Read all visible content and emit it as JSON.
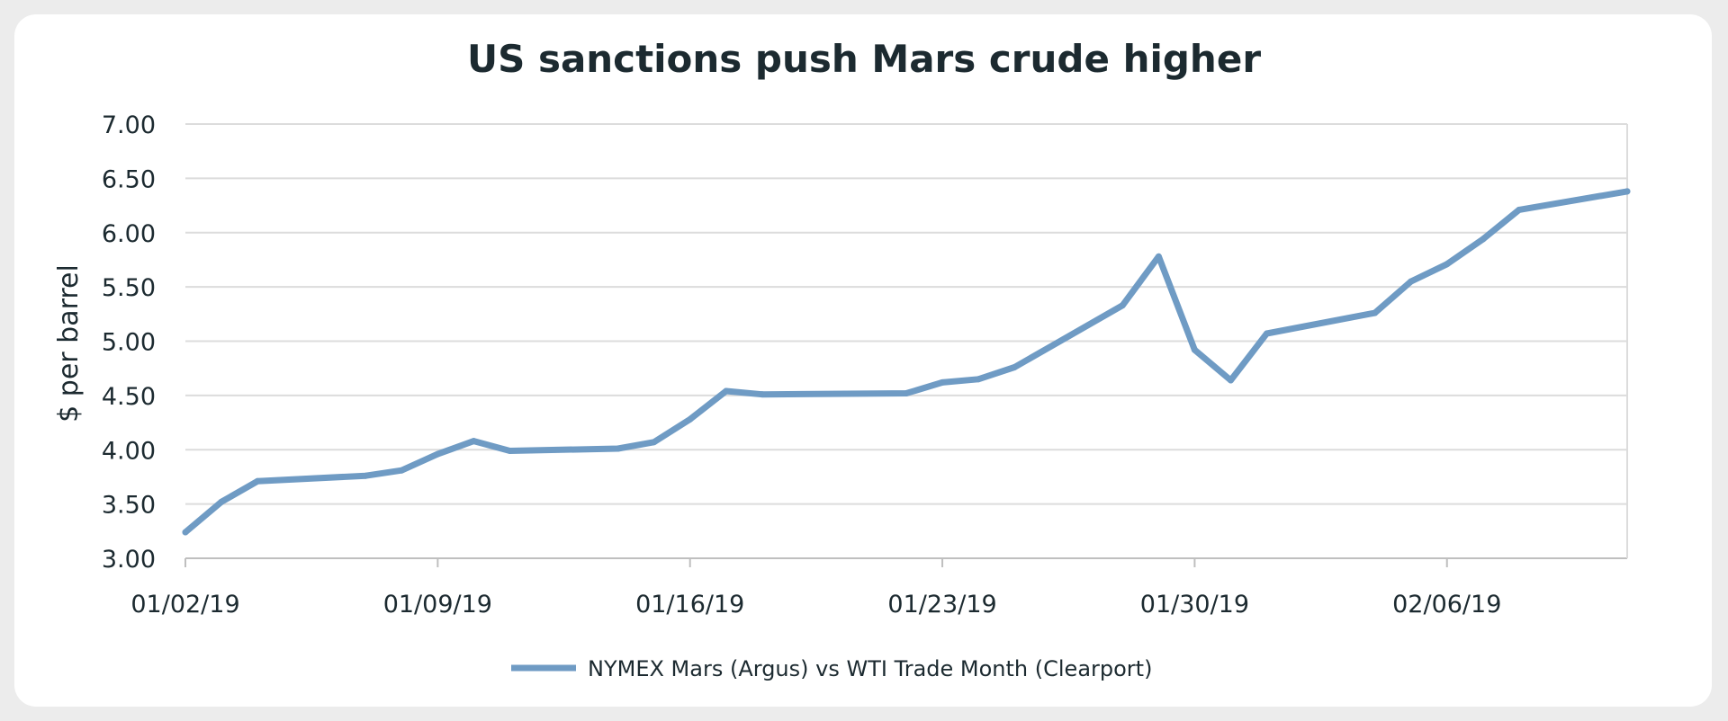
{
  "chart_data": {
    "type": "line",
    "title": "US sanctions push Mars crude higher",
    "xlabel": "",
    "ylabel": "$ per barrel",
    "ylim": [
      3.0,
      7.0
    ],
    "yticks": [
      "3.00",
      "3.50",
      "4.00",
      "4.50",
      "5.00",
      "5.50",
      "6.00",
      "6.50",
      "7.00"
    ],
    "xlim": [
      "2019-01-02",
      "2019-02-11"
    ],
    "xticks": [
      {
        "date": "2019-01-02",
        "label": "01/02/19"
      },
      {
        "date": "2019-01-09",
        "label": "01/09/19"
      },
      {
        "date": "2019-01-16",
        "label": "01/16/19"
      },
      {
        "date": "2019-01-23",
        "label": "01/23/19"
      },
      {
        "date": "2019-01-30",
        "label": "01/30/19"
      },
      {
        "date": "2019-02-06",
        "label": "02/06/19"
      }
    ],
    "grid": true,
    "legend_position": "bottom",
    "series": [
      {
        "name": "NYMEX Mars (Argus) vs WTI Trade Month (Clearport)",
        "color": "#6f9bc4",
        "points": [
          {
            "x": "2019-01-02",
            "y": 3.24
          },
          {
            "x": "2019-01-03",
            "y": 3.52
          },
          {
            "x": "2019-01-04",
            "y": 3.71
          },
          {
            "x": "2019-01-07",
            "y": 3.76
          },
          {
            "x": "2019-01-08",
            "y": 3.81
          },
          {
            "x": "2019-01-09",
            "y": 3.96
          },
          {
            "x": "2019-01-10",
            "y": 4.08
          },
          {
            "x": "2019-01-11",
            "y": 3.99
          },
          {
            "x": "2019-01-14",
            "y": 4.01
          },
          {
            "x": "2019-01-15",
            "y": 4.07
          },
          {
            "x": "2019-01-16",
            "y": 4.28
          },
          {
            "x": "2019-01-17",
            "y": 4.54
          },
          {
            "x": "2019-01-18",
            "y": 4.51
          },
          {
            "x": "2019-01-22",
            "y": 4.52
          },
          {
            "x": "2019-01-23",
            "y": 4.62
          },
          {
            "x": "2019-01-24",
            "y": 4.65
          },
          {
            "x": "2019-01-25",
            "y": 4.76
          },
          {
            "x": "2019-01-28",
            "y": 5.33
          },
          {
            "x": "2019-01-29",
            "y": 5.78
          },
          {
            "x": "2019-01-30",
            "y": 4.92
          },
          {
            "x": "2019-01-31",
            "y": 4.64
          },
          {
            "x": "2019-02-01",
            "y": 5.07
          },
          {
            "x": "2019-02-04",
            "y": 5.26
          },
          {
            "x": "2019-02-05",
            "y": 5.55
          },
          {
            "x": "2019-02-06",
            "y": 5.71
          },
          {
            "x": "2019-02-07",
            "y": 5.94
          },
          {
            "x": "2019-02-08",
            "y": 6.21
          },
          {
            "x": "2019-02-11",
            "y": 6.38
          }
        ]
      }
    ]
  }
}
